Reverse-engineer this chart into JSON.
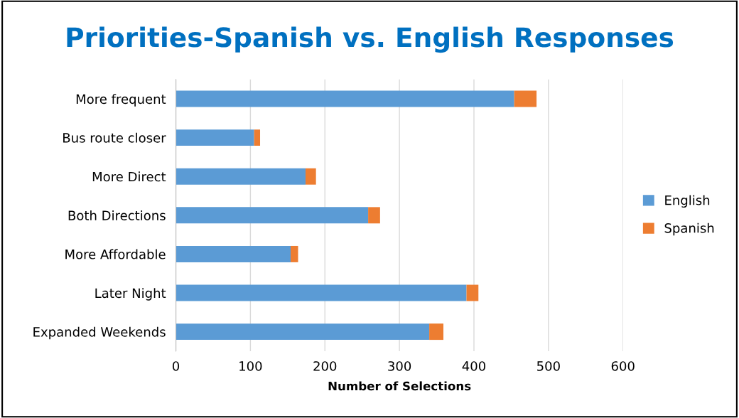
{
  "chart_data": {
    "type": "bar",
    "orientation": "horizontal",
    "stacked": true,
    "title": "Priorities-Spanish vs. English Responses",
    "xlabel": "Number of Selections",
    "categories": [
      "More frequent",
      "Bus route closer",
      "More Direct",
      "Both Directions",
      "More Affordable",
      "Later Night",
      "Expanded Weekends"
    ],
    "series": [
      {
        "name": "English",
        "color": "#5b9bd5",
        "values": [
          454,
          105,
          174,
          258,
          154,
          390,
          340
        ]
      },
      {
        "name": "Spanish",
        "color": "#ed7d31",
        "values": [
          30,
          8,
          14,
          16,
          10,
          16,
          19
        ]
      }
    ],
    "xlim": [
      0,
      600
    ],
    "xticks": [
      0,
      100,
      200,
      300,
      400,
      500,
      600
    ],
    "grid": "x",
    "legend": "right"
  }
}
